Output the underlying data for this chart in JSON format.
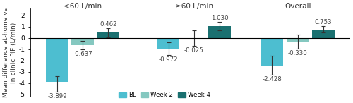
{
  "groups": [
    "<60 L/min",
    "≥60 L/min",
    "Overall"
  ],
  "categories": [
    "BL",
    "Week 2",
    "Week 4"
  ],
  "values": [
    [
      -3.899,
      -0.637,
      0.462
    ],
    [
      -0.972,
      -0.025,
      1.03
    ],
    [
      -2.428,
      -0.33,
      0.753
    ]
  ],
  "value_labels": [
    [
      "-3.899",
      "-0.637",
      "0.462"
    ],
    [
      "-0.972",
      "-0.025",
      "1.030"
    ],
    [
      "-2.428",
      "-0.330",
      "0.753"
    ]
  ],
  "errors_low": [
    [
      0.85,
      0.38,
      0.42
    ],
    [
      0.55,
      0.7,
      0.38
    ],
    [
      0.85,
      0.62,
      0.28
    ]
  ],
  "errors_high": [
    [
      0.5,
      0.38,
      0.42
    ],
    [
      0.55,
      0.7,
      0.38
    ],
    [
      0.85,
      0.62,
      0.28
    ]
  ],
  "colors": [
    "#4DBED0",
    "#85C8C0",
    "#1A7070"
  ],
  "ylabel": "Mean difference at-home vs\nin-clinic PIF (L/min)",
  "ylim": [
    -5.2,
    2.6
  ],
  "yticks": [
    -5,
    -4,
    -3,
    -2,
    -1,
    0,
    1,
    2
  ],
  "bar_width": 0.2,
  "legend_labels": [
    "BL",
    "Week 2",
    "Week 4"
  ],
  "background_color": "#ffffff",
  "label_fontsize": 6.2,
  "title_fontsize": 7.5,
  "axis_fontsize": 6.5,
  "group_centers": [
    0.35,
    1.35,
    2.28
  ]
}
